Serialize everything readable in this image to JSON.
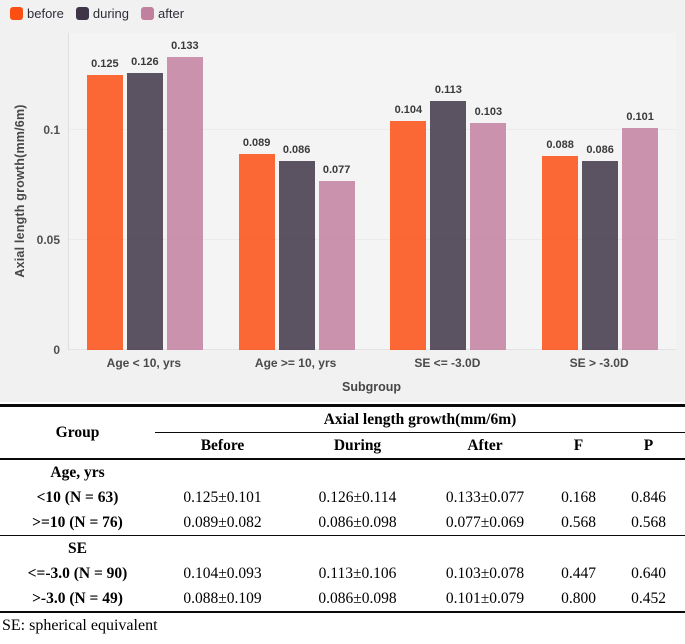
{
  "legend": {
    "items": [
      {
        "label": "before",
        "color": "#fb4e13"
      },
      {
        "label": "during",
        "color": "#3f3548"
      },
      {
        "label": "after",
        "color": "#c2809f"
      }
    ]
  },
  "chart_data": {
    "type": "bar",
    "title": "",
    "categories": [
      "Age < 10, yrs",
      "Age >= 10, yrs",
      "SE <= -3.0D",
      "SE > -3.0D"
    ],
    "series": [
      {
        "name": "before",
        "color": "#fb4e13",
        "values": [
          0.125,
          0.089,
          0.104,
          0.088
        ]
      },
      {
        "name": "during",
        "color": "#3f3548",
        "values": [
          0.126,
          0.086,
          0.113,
          0.086
        ]
      },
      {
        "name": "after",
        "color": "#c2809f",
        "values": [
          0.133,
          0.077,
          0.103,
          0.101
        ]
      }
    ],
    "xlabel": "Subgroup",
    "ylabel": "Axial length growth(mm/6m)",
    "ylim": [
      0,
      0.144
    ],
    "yticks": [
      {
        "value": 0,
        "label": "0"
      },
      {
        "value": 0.05,
        "label": "0.05"
      },
      {
        "value": 0.1,
        "label": "0.1"
      }
    ],
    "grid": true,
    "legend_position": "top-left"
  },
  "table": {
    "col_group_header": "Axial length growth(mm/6m)",
    "headers": [
      "Group",
      "Before",
      "During",
      "After",
      "F",
      "P"
    ],
    "sections": [
      {
        "title": "Age, yrs",
        "rows": [
          {
            "label": "<10 (N = 63)",
            "cells": [
              "0.125±0.101",
              "0.126±0.114",
              "0.133±0.077",
              "0.168",
              "0.846"
            ]
          },
          {
            "label": ">=10 (N = 76)",
            "cells": [
              "0.089±0.082",
              "0.086±0.098",
              "0.077±0.069",
              "0.568",
              "0.568"
            ]
          }
        ]
      },
      {
        "title": "SE",
        "rows": [
          {
            "label": "<=-3.0 (N = 90)",
            "cells": [
              "0.104±0.093",
              "0.113±0.106",
              "0.103±0.078",
              "0.447",
              "0.640"
            ]
          },
          {
            "label": ">-3.0 (N = 49)",
            "cells": [
              "0.088±0.109",
              "0.086±0.098",
              "0.101±0.079",
              "0.800",
              "0.452"
            ]
          }
        ]
      }
    ],
    "footnote": "SE: spherical equivalent"
  }
}
